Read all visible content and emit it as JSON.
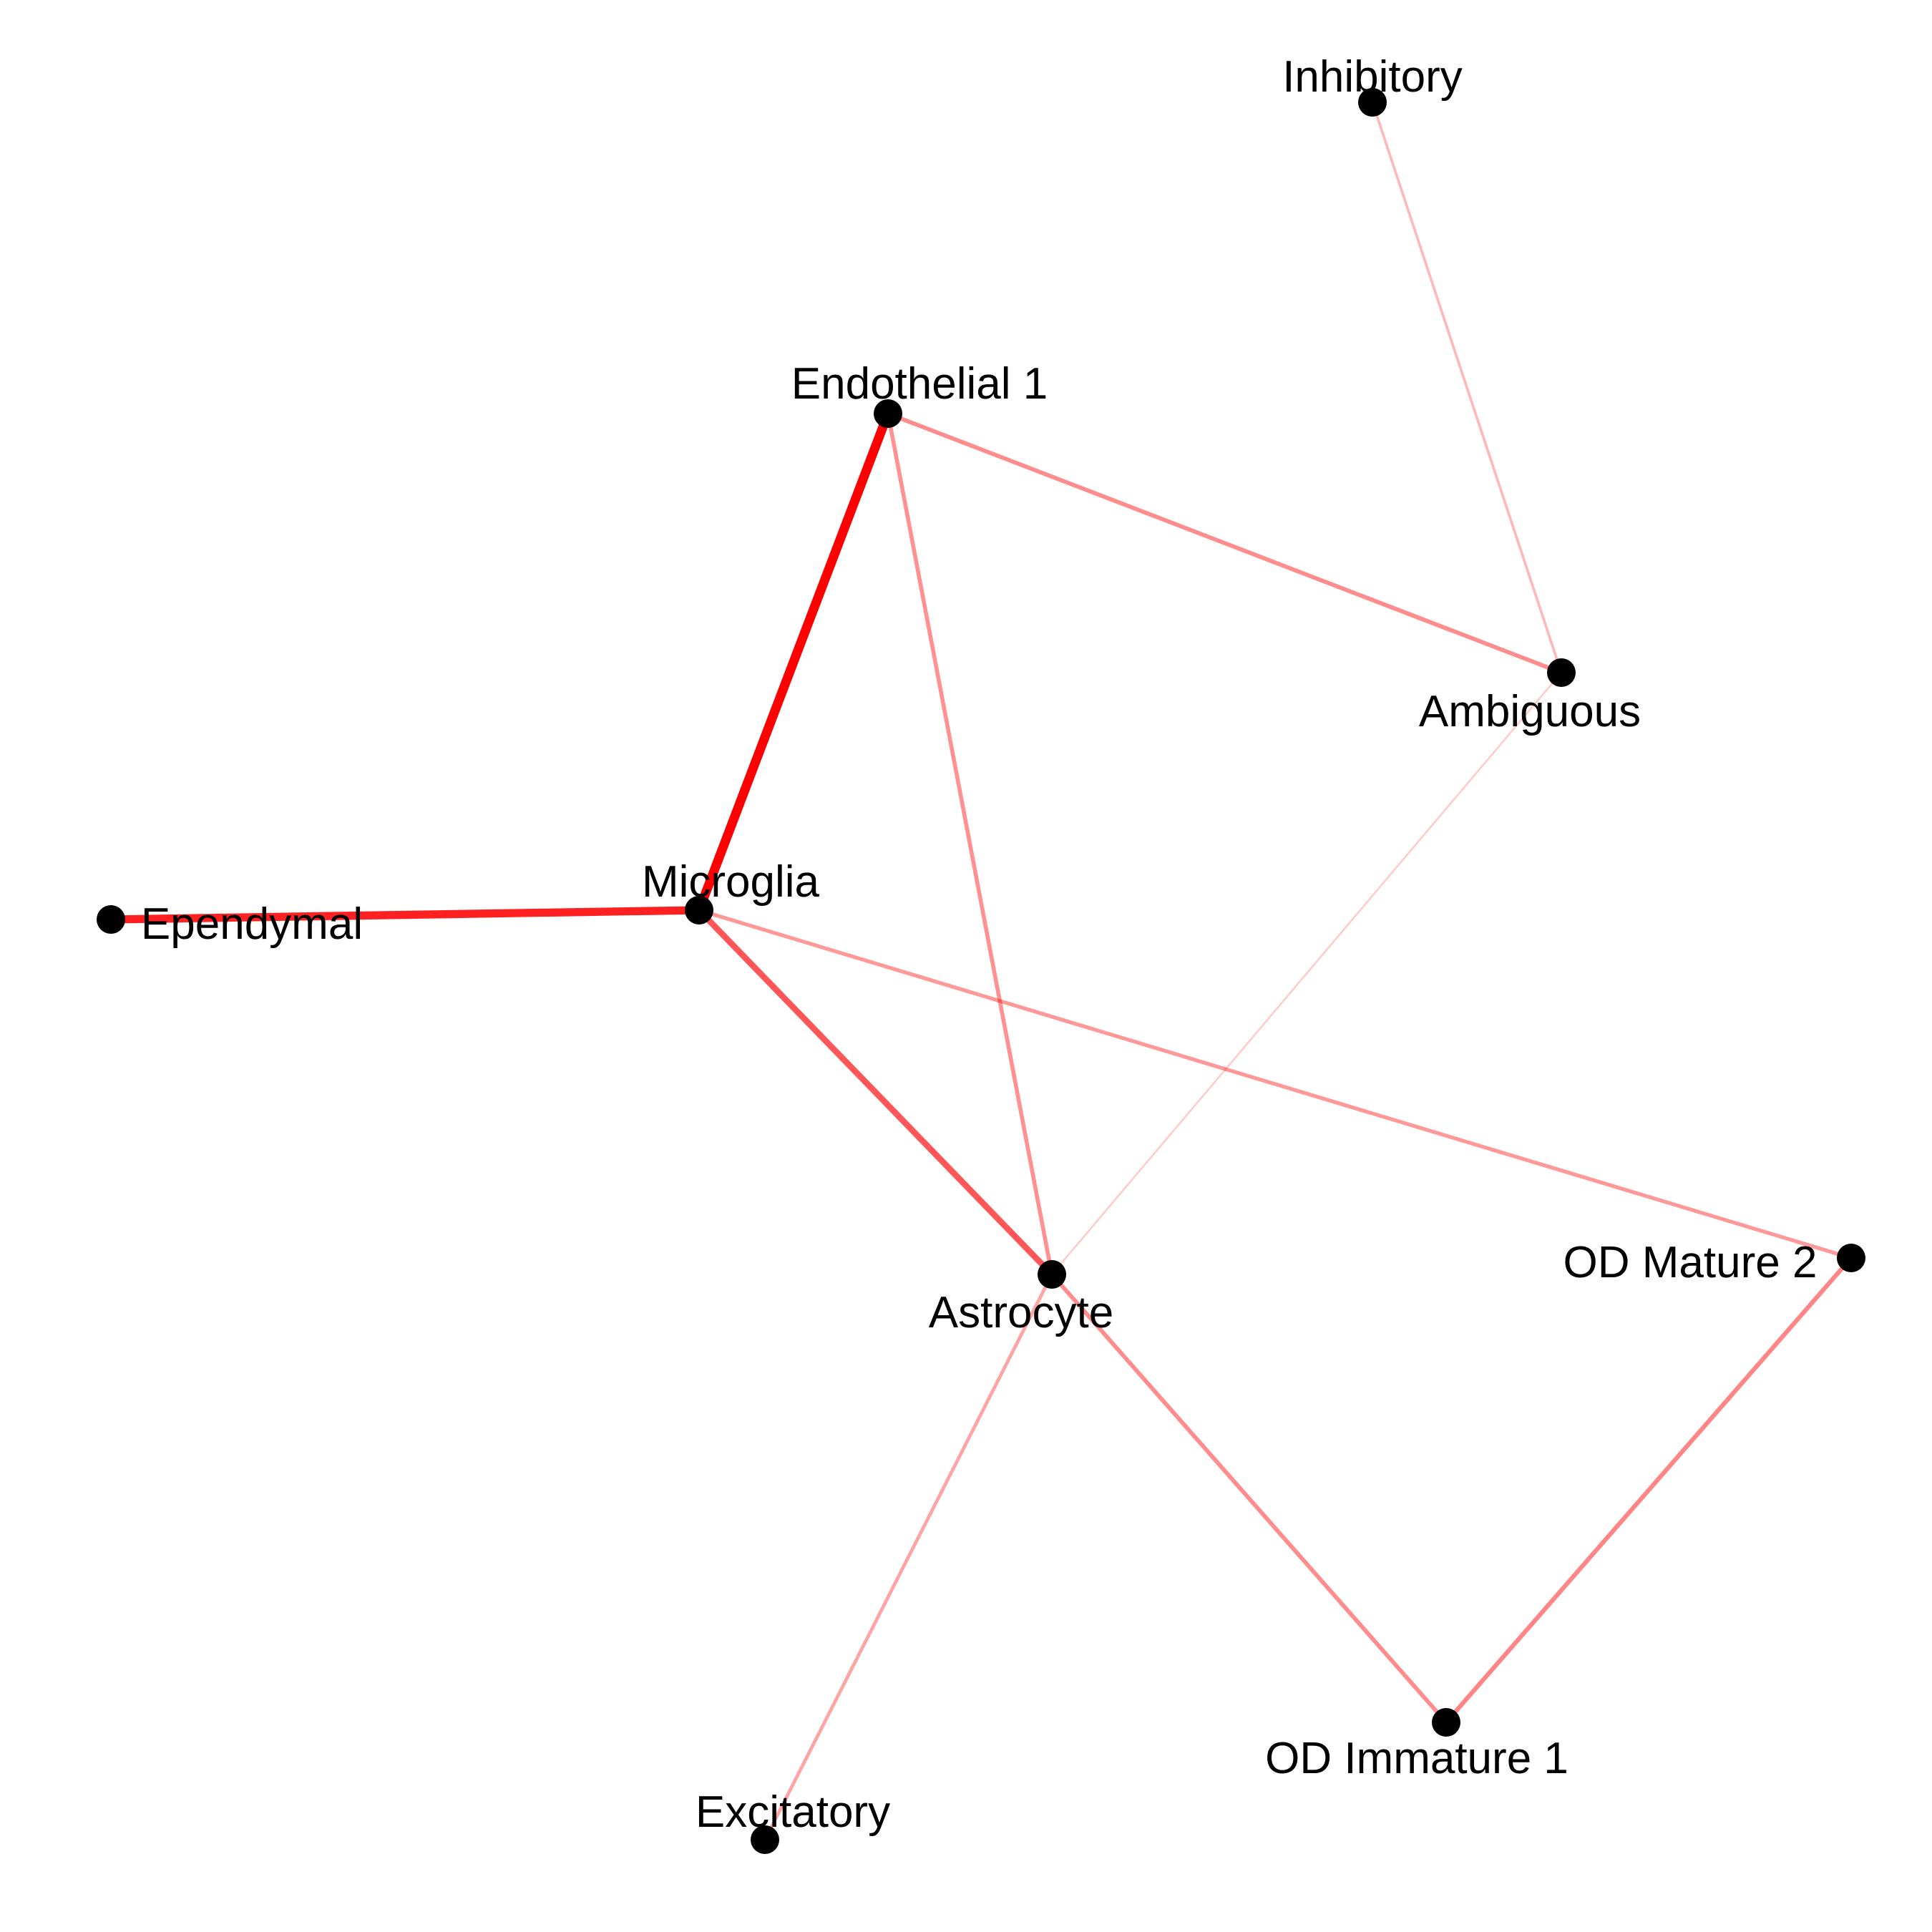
{
  "diagram": {
    "type": "network",
    "edge_color": "#ff0000",
    "node_color": "#000000",
    "nodes": [
      {
        "id": "inhibitory",
        "label": "Inhibitory"
      },
      {
        "id": "endothelial1",
        "label": "Endothelial 1"
      },
      {
        "id": "ambiguous",
        "label": "Ambiguous"
      },
      {
        "id": "microglia",
        "label": "Microglia"
      },
      {
        "id": "ependymal",
        "label": "Ependymal"
      },
      {
        "id": "astrocyte",
        "label": "Astrocyte"
      },
      {
        "id": "odmature2",
        "label": "OD Mature 2"
      },
      {
        "id": "odimmature1",
        "label": "OD Immature 1"
      },
      {
        "id": "excitatory",
        "label": "Excitatory"
      }
    ],
    "edges": [
      {
        "source": "microglia",
        "target": "endothelial1",
        "weight": 1.0
      },
      {
        "source": "ependymal",
        "target": "microglia",
        "weight": 0.85
      },
      {
        "source": "microglia",
        "target": "astrocyte",
        "weight": 0.6
      },
      {
        "source": "endothelial1",
        "target": "ambiguous",
        "weight": 0.35
      },
      {
        "source": "endothelial1",
        "target": "astrocyte",
        "weight": 0.33
      },
      {
        "source": "microglia",
        "target": "odmature2",
        "weight": 0.3
      },
      {
        "source": "astrocyte",
        "target": "odimmature1",
        "weight": 0.35
      },
      {
        "source": "odimmature1",
        "target": "odmature2",
        "weight": 0.38
      },
      {
        "source": "astrocyte",
        "target": "excitatory",
        "weight": 0.25
      },
      {
        "source": "inhibitory",
        "target": "ambiguous",
        "weight": 0.15
      },
      {
        "source": "ambiguous",
        "target": "astrocyte",
        "weight": 0.06
      }
    ]
  }
}
